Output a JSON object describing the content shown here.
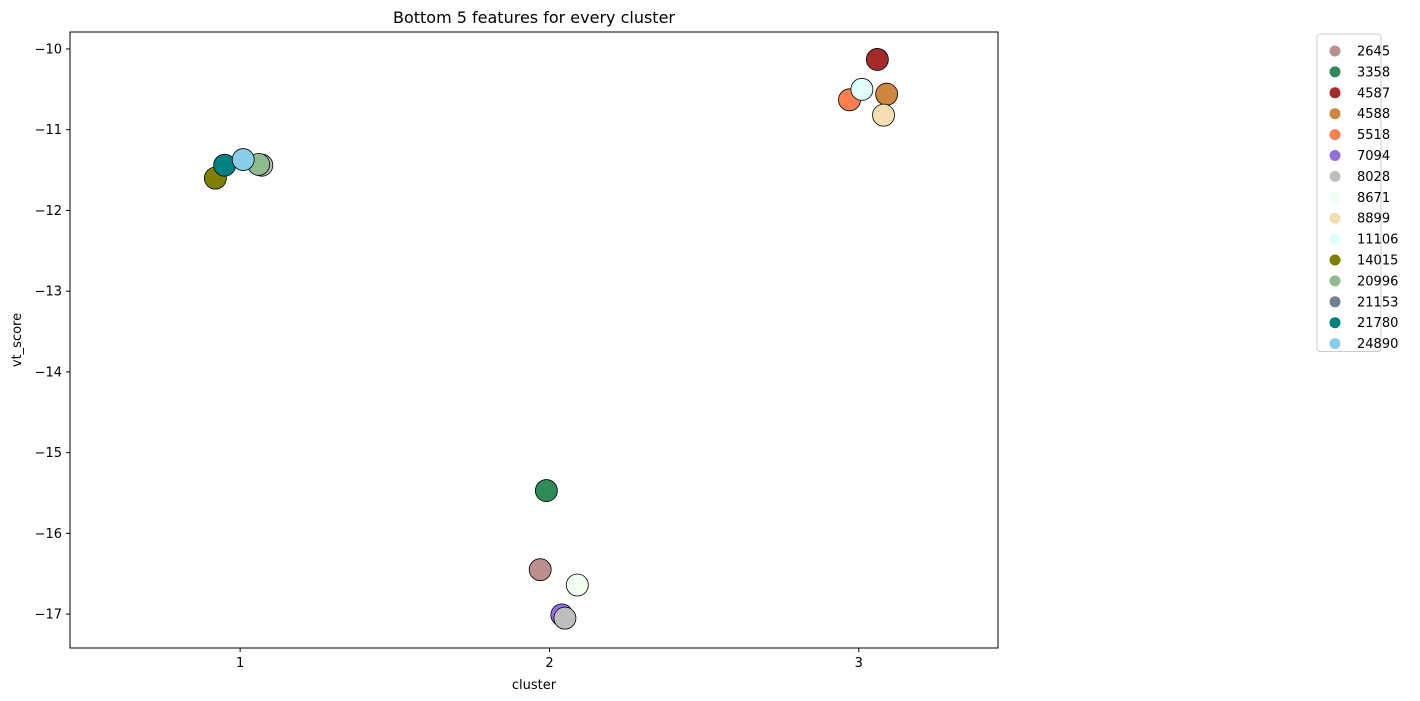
{
  "chart_data": {
    "type": "scatter",
    "title": "Bottom 5 features for every cluster",
    "xlabel": "cluster",
    "ylabel": "vt_score",
    "xlim": [
      0.45,
      3.45
    ],
    "ylim": [
      -17.42,
      -9.79
    ],
    "xticks": [
      1,
      2,
      3
    ],
    "yticks": [
      -17,
      -16,
      -15,
      -14,
      -13,
      -12,
      -11,
      -10
    ],
    "ytick_labels": [
      "−17",
      "−16",
      "−15",
      "−14",
      "−13",
      "−12",
      "−11",
      "−10"
    ],
    "grid": false,
    "legend_position": "outside-right",
    "series": [
      {
        "name": "2645",
        "color": "#bc8f8f",
        "points": [
          {
            "x": 1.97,
            "y": -16.45
          }
        ]
      },
      {
        "name": "3358",
        "color": "#2e8b57",
        "points": [
          {
            "x": 1.99,
            "y": -15.47
          }
        ]
      },
      {
        "name": "4587",
        "color": "#a52a2a",
        "points": [
          {
            "x": 3.06,
            "y": -10.13
          }
        ]
      },
      {
        "name": "4588",
        "color": "#cd853f",
        "points": [
          {
            "x": 3.09,
            "y": -10.56
          }
        ]
      },
      {
        "name": "5518",
        "color": "#ff7f50",
        "points": [
          {
            "x": 2.97,
            "y": -10.63
          }
        ]
      },
      {
        "name": "7094",
        "color": "#9370db",
        "points": [
          {
            "x": 2.04,
            "y": -17.01
          }
        ]
      },
      {
        "name": "8028",
        "color": "#bebebe",
        "points": [
          {
            "x": 2.05,
            "y": -17.05
          },
          {
            "x": 1.07,
            "y": -11.44
          }
        ]
      },
      {
        "name": "8671",
        "color": "#f0fff0",
        "points": [
          {
            "x": 2.09,
            "y": -16.64
          }
        ]
      },
      {
        "name": "8899",
        "color": "#f5deb3",
        "points": [
          {
            "x": 3.08,
            "y": -10.82
          }
        ]
      },
      {
        "name": "11106",
        "color": "#e0ffff",
        "points": [
          {
            "x": 3.01,
            "y": -10.5
          }
        ]
      },
      {
        "name": "14015",
        "color": "#808000",
        "points": [
          {
            "x": 0.92,
            "y": -11.6
          }
        ]
      },
      {
        "name": "20996",
        "color": "#8fbc8f",
        "points": [
          {
            "x": 1.06,
            "y": -11.43
          }
        ]
      },
      {
        "name": "21153",
        "color": "#708090",
        "points": []
      },
      {
        "name": "21780",
        "color": "#008080",
        "points": [
          {
            "x": 0.95,
            "y": -11.44
          }
        ]
      },
      {
        "name": "24890",
        "color": "#87ceeb",
        "points": [
          {
            "x": 1.01,
            "y": -11.37
          }
        ]
      }
    ]
  }
}
